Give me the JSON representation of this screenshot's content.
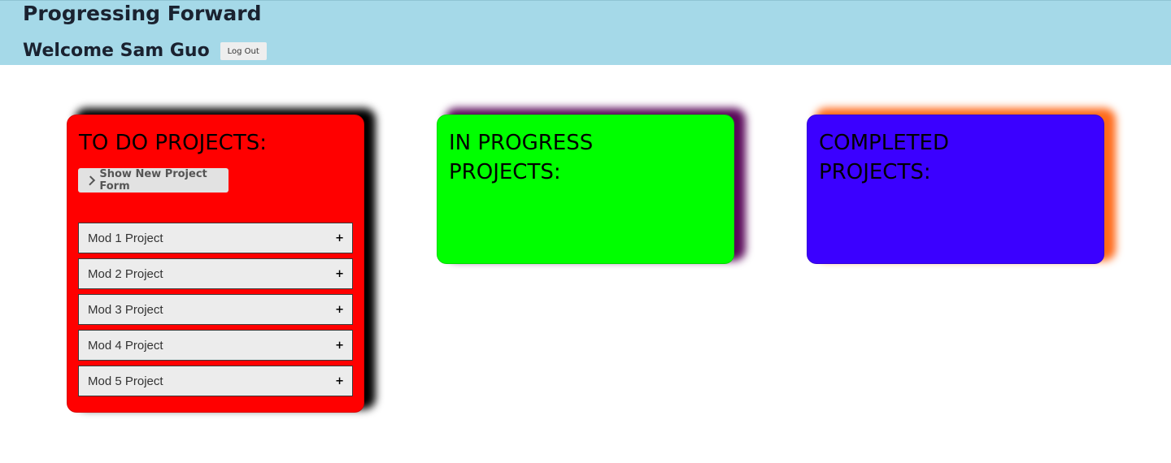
{
  "header": {
    "title": "Progressing Forward",
    "welcome": "Welcome Sam Guo",
    "logout_label": "Log Out",
    "background": "#a5d9e8"
  },
  "columns": {
    "todo": {
      "title": "TO DO PROJECTS:",
      "color": "#ff0000",
      "show_form_label": "Show New Project Form",
      "items": [
        {
          "label": "Mod 1 Project",
          "icon": "+"
        },
        {
          "label": "Mod 2 Project",
          "icon": "+"
        },
        {
          "label": "Mod 3 Project",
          "icon": "+"
        },
        {
          "label": "Mod 4 Project",
          "icon": "+"
        },
        {
          "label": "Mod 5 Project",
          "icon": "+"
        }
      ]
    },
    "in_progress": {
      "title": "IN PROGRESS PROJECTS:",
      "color": "#00ff00"
    },
    "completed": {
      "title": "COMPLETED PROJECTS:",
      "color": "#3b00ff"
    }
  }
}
